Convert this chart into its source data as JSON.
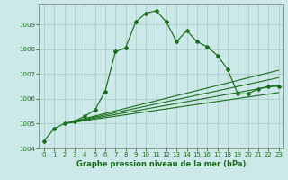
{
  "xlabel": "Graphe pression niveau de la mer (hPa)",
  "background_color": "#cce8e8",
  "grid_color": "#aacccc",
  "line_color": "#1a6e1a",
  "x_ticks": [
    0,
    1,
    2,
    3,
    4,
    5,
    6,
    7,
    8,
    9,
    10,
    11,
    12,
    13,
    14,
    15,
    16,
    17,
    18,
    19,
    20,
    21,
    22,
    23
  ],
  "ylim": [
    1004,
    1009.8
  ],
  "yticks": [
    1004,
    1005,
    1006,
    1007,
    1008,
    1009
  ],
  "main_series": {
    "x": [
      0,
      1,
      2,
      3,
      4,
      5,
      6,
      7,
      8,
      9,
      10,
      11,
      12,
      13,
      14,
      15,
      16,
      17,
      18,
      19,
      20,
      21,
      22,
      23
    ],
    "y": [
      1004.3,
      1004.8,
      1005.0,
      1005.1,
      1005.3,
      1005.55,
      1006.3,
      1007.9,
      1008.05,
      1009.1,
      1009.45,
      1009.55,
      1009.1,
      1008.3,
      1008.75,
      1008.3,
      1008.1,
      1007.75,
      1007.2,
      1006.2,
      1006.2,
      1006.4,
      1006.5,
      1006.5
    ]
  },
  "flat_series": [
    {
      "x": [
        2,
        23
      ],
      "y": [
        1005.0,
        1007.15
      ]
    },
    {
      "x": [
        2,
        23
      ],
      "y": [
        1005.0,
        1006.85
      ]
    },
    {
      "x": [
        2,
        23
      ],
      "y": [
        1005.0,
        1006.55
      ]
    },
    {
      "x": [
        2,
        23
      ],
      "y": [
        1005.0,
        1006.25
      ]
    }
  ],
  "xlabel_fontsize": 6.0,
  "tick_fontsize": 5.0
}
